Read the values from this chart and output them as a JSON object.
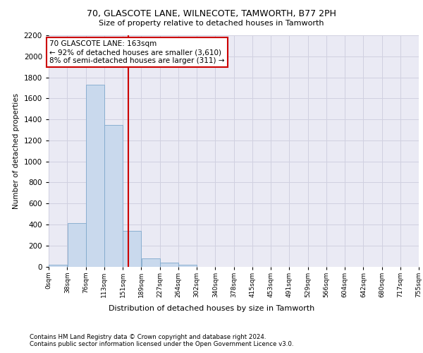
{
  "title1": "70, GLASCOTE LANE, WILNECOTE, TAMWORTH, B77 2PH",
  "title2": "Size of property relative to detached houses in Tamworth",
  "xlabel": "Distribution of detached houses by size in Tamworth",
  "ylabel": "Number of detached properties",
  "bin_edges": [
    0,
    38,
    76,
    113,
    151,
    189,
    227,
    264,
    302,
    340,
    378,
    415,
    453,
    491,
    529,
    566,
    604,
    642,
    680,
    717,
    755
  ],
  "bin_labels": [
    "0sqm",
    "38sqm",
    "76sqm",
    "113sqm",
    "151sqm",
    "189sqm",
    "227sqm",
    "264sqm",
    "302sqm",
    "340sqm",
    "378sqm",
    "415sqm",
    "453sqm",
    "491sqm",
    "529sqm",
    "566sqm",
    "604sqm",
    "642sqm",
    "680sqm",
    "717sqm",
    "755sqm"
  ],
  "bar_heights": [
    15,
    410,
    1730,
    1345,
    340,
    80,
    35,
    20,
    0,
    0,
    0,
    0,
    0,
    0,
    0,
    0,
    0,
    0,
    0,
    0
  ],
  "bar_color": "#c9d9ed",
  "bar_edge_color": "#7fa8cc",
  "grid_color": "#d0d0e0",
  "bg_color": "#eaeaf4",
  "vline_x": 163,
  "vline_color": "#cc0000",
  "annotation_text": "70 GLASCOTE LANE: 163sqm\n← 92% of detached houses are smaller (3,610)\n8% of semi-detached houses are larger (311) →",
  "annotation_box_color": "#cc0000",
  "ylim": [
    0,
    2200
  ],
  "yticks": [
    0,
    200,
    400,
    600,
    800,
    1000,
    1200,
    1400,
    1600,
    1800,
    2000,
    2200
  ],
  "footer1": "Contains HM Land Registry data © Crown copyright and database right 2024.",
  "footer2": "Contains public sector information licensed under the Open Government Licence v3.0."
}
